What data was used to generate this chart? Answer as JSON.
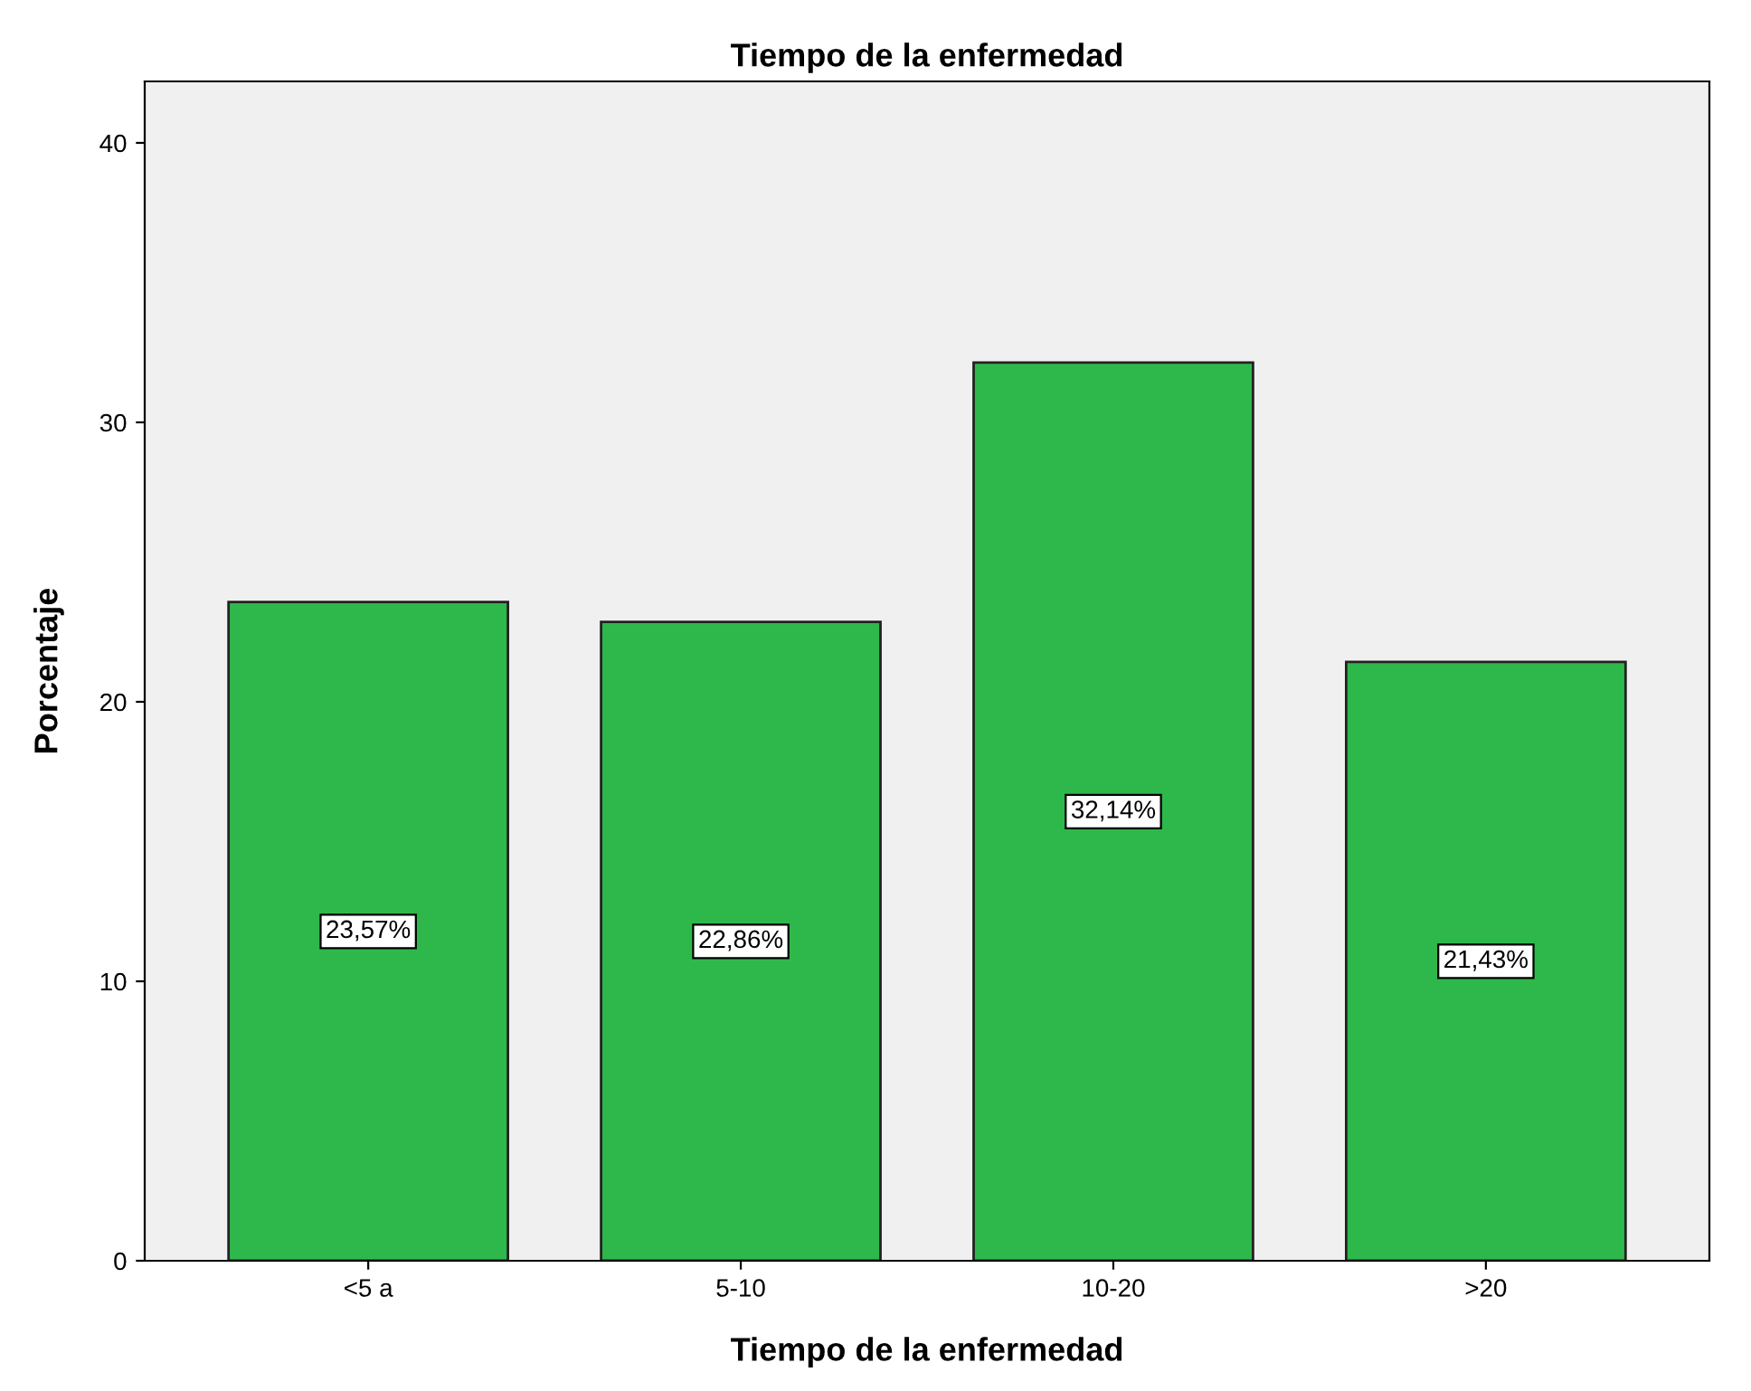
{
  "chart_data": {
    "type": "bar",
    "title": "Tiempo de la enfermedad",
    "xlabel": "Tiempo de la enfermedad",
    "ylabel": "Porcentaje",
    "categories": [
      "<5 a",
      "5-10",
      "10-20",
      ">20"
    ],
    "values": [
      23.57,
      22.86,
      32.14,
      21.43
    ],
    "value_labels": [
      "23,57%",
      "22,86%",
      "32,14%",
      "21,43%"
    ],
    "color": "#2eb84b",
    "ylim": [
      0,
      42.2
    ],
    "yticks": [
      0,
      10,
      20,
      30,
      40
    ],
    "grid": false
  }
}
